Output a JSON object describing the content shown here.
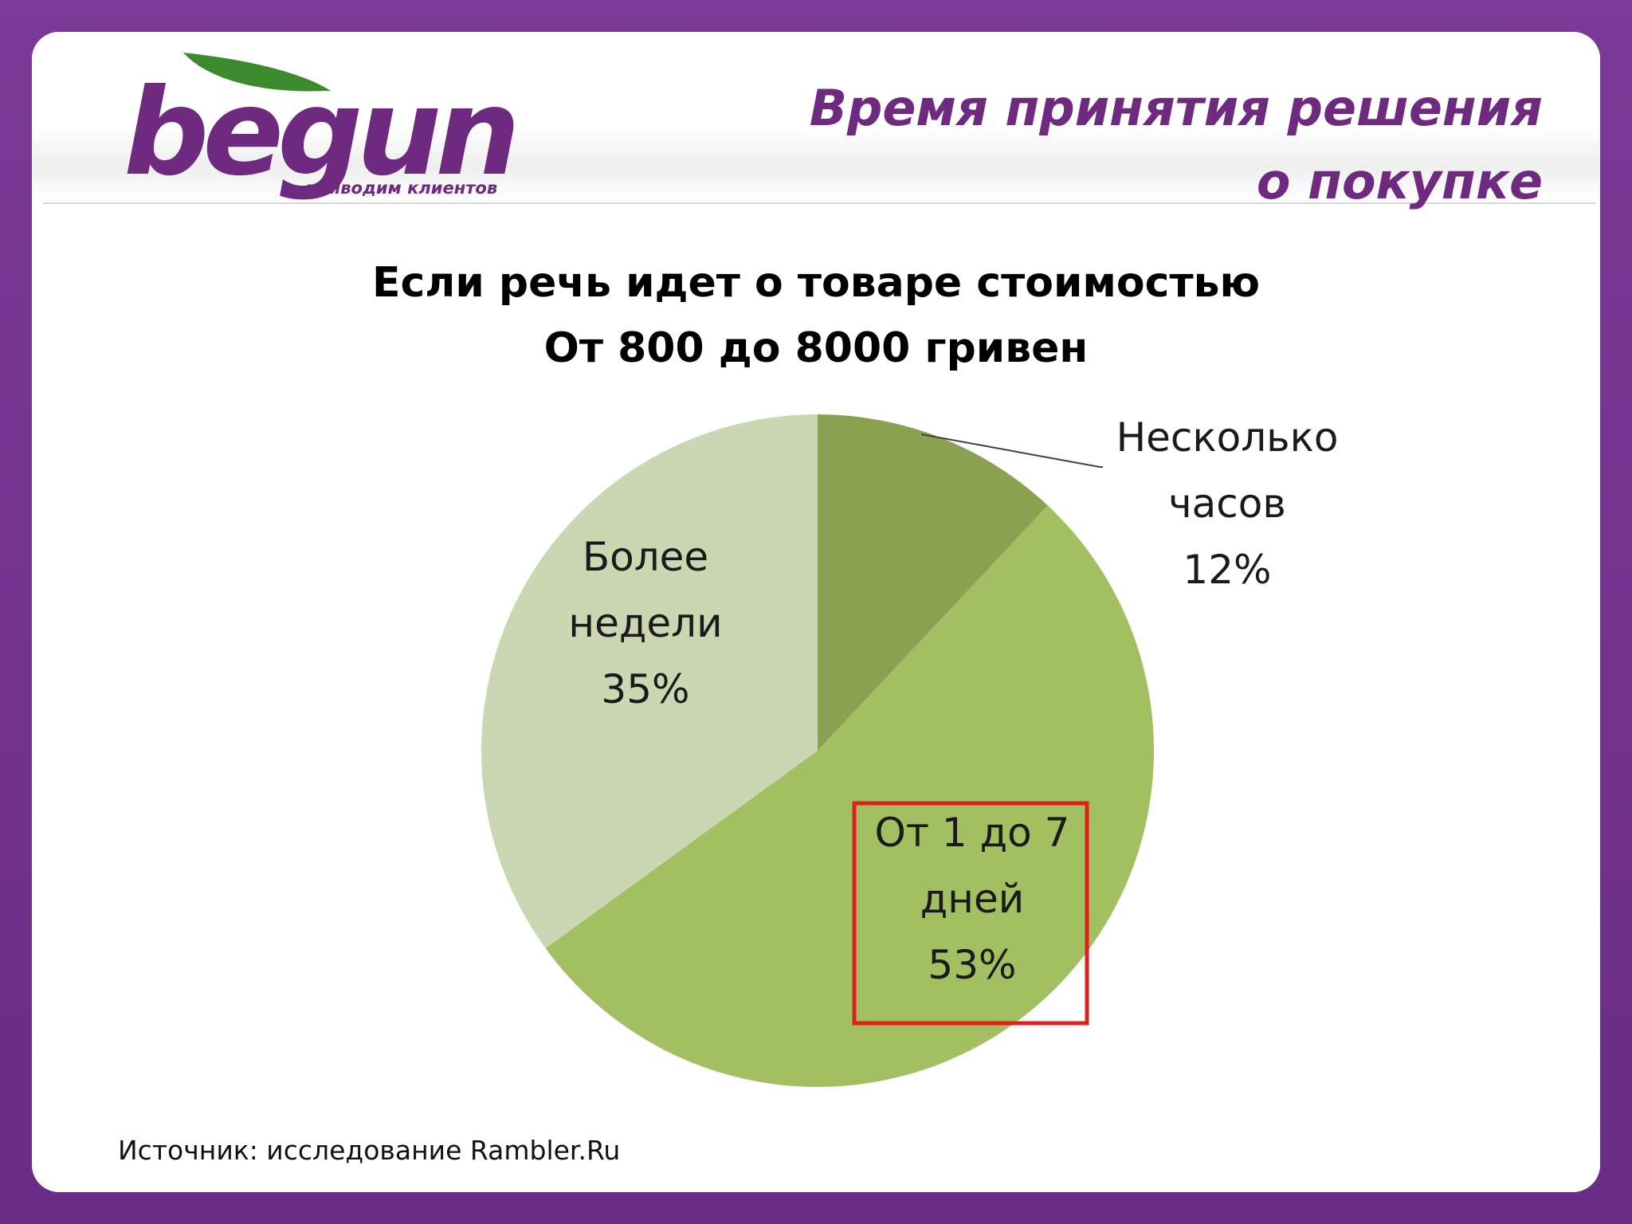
{
  "header": {
    "logo": {
      "word": "begun",
      "tagline": "приводим клиентов"
    },
    "title_lines": [
      "Время принятия решения",
      "о покупке"
    ]
  },
  "chart_data": {
    "type": "pie",
    "title_lines": [
      "Если речь идет о товаре стоимостью",
      "От 800 до 8000 гривен"
    ],
    "start_angle_deg": 0,
    "direction": "clockwise",
    "slices": [
      {
        "label_lines": [
          "Несколько",
          "часов"
        ],
        "value": 12,
        "value_label": "12%",
        "color": "#8aa152",
        "label_position": "outside-right",
        "leader_line": true
      },
      {
        "label_lines": [
          "От 1 до 7",
          "дней"
        ],
        "value": 53,
        "value_label": "53%",
        "color": "#a2bf62",
        "label_position": "inside",
        "highlighted": true
      },
      {
        "label_lines": [
          "Более",
          "недели"
        ],
        "value": 35,
        "value_label": "35%",
        "color": "#cad7b2",
        "label_position": "inside"
      }
    ],
    "highlight_color": "#e0201c"
  },
  "footer": {
    "source": "Источник: исследование Rambler.Ru"
  },
  "colors": {
    "brand_purple": "#6d2a7f",
    "brand_green": "#3c8a2e"
  }
}
